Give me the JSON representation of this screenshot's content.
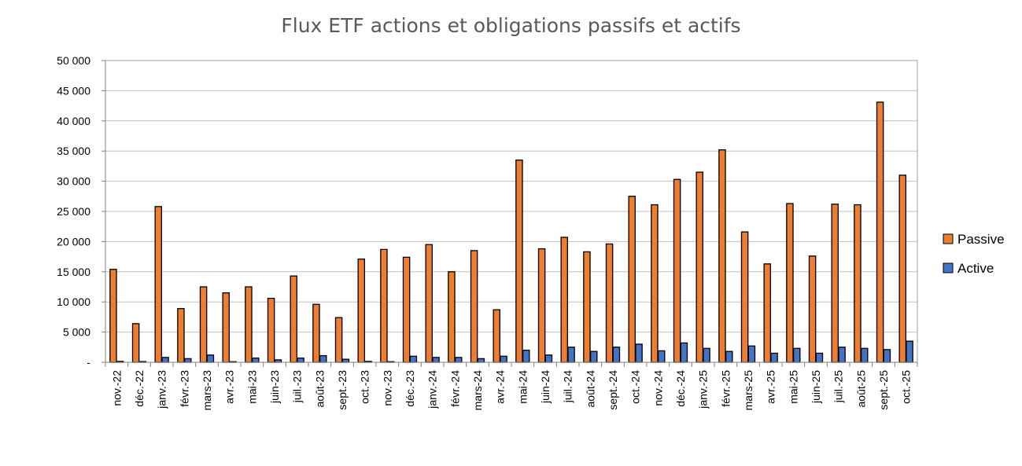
{
  "chart_data": {
    "type": "bar",
    "title": "Flux ETF actions et obligations passifs et actifs",
    "xlabel": "",
    "ylabel": "",
    "ylim": [
      0,
      50000
    ],
    "yticks": [
      "-",
      "5 000",
      "10 000",
      "15 000",
      "20 000",
      "25 000",
      "30 000",
      "35 000",
      "40 000",
      "45 000",
      "50 000"
    ],
    "grid": true,
    "legend_position": "right",
    "categories": [
      "nov.-22",
      "déc.-22",
      "janv.-23",
      "févr.-23",
      "mars-23",
      "avr.-23",
      "mai-23",
      "juin-23",
      "juil.-23",
      "août-23",
      "sept.-23",
      "oct.-23",
      "nov.-23",
      "déc.-23",
      "janv.-24",
      "févr.-24",
      "mars-24",
      "avr.-24",
      "mai-24",
      "juin-24",
      "juil.-24",
      "août-24",
      "sept.-24",
      "oct.-24",
      "nov.-24",
      "déc.-24",
      "janv.-25",
      "févr.-25",
      "mars-25",
      "avr.-25",
      "mai-25",
      "juin-25",
      "juil.-25",
      "août-25",
      "sept.-25",
      "oct.-25"
    ],
    "series": [
      {
        "name": "Passive",
        "color": "#ED7D31",
        "values": [
          15400,
          6400,
          25800,
          8900,
          12500,
          11500,
          12500,
          10600,
          14300,
          9600,
          7400,
          17100,
          18700,
          17400,
          19500,
          15000,
          18500,
          8700,
          33500,
          18800,
          20700,
          18300,
          19600,
          27500,
          26100,
          30300,
          31500,
          35200,
          21600,
          16300,
          26300,
          17600,
          26200,
          26100,
          43100,
          31000
        ]
      },
      {
        "name": "Active",
        "color": "#4472C4",
        "values": [
          150,
          120,
          800,
          600,
          1200,
          100,
          700,
          400,
          700,
          1100,
          500,
          150,
          100,
          1000,
          800,
          800,
          600,
          1000,
          2000,
          1200,
          2500,
          1800,
          2500,
          3000,
          1900,
          3200,
          2300,
          1800,
          2700,
          1500,
          2300,
          1500,
          2500,
          2300,
          2100,
          3500
        ]
      }
    ]
  }
}
